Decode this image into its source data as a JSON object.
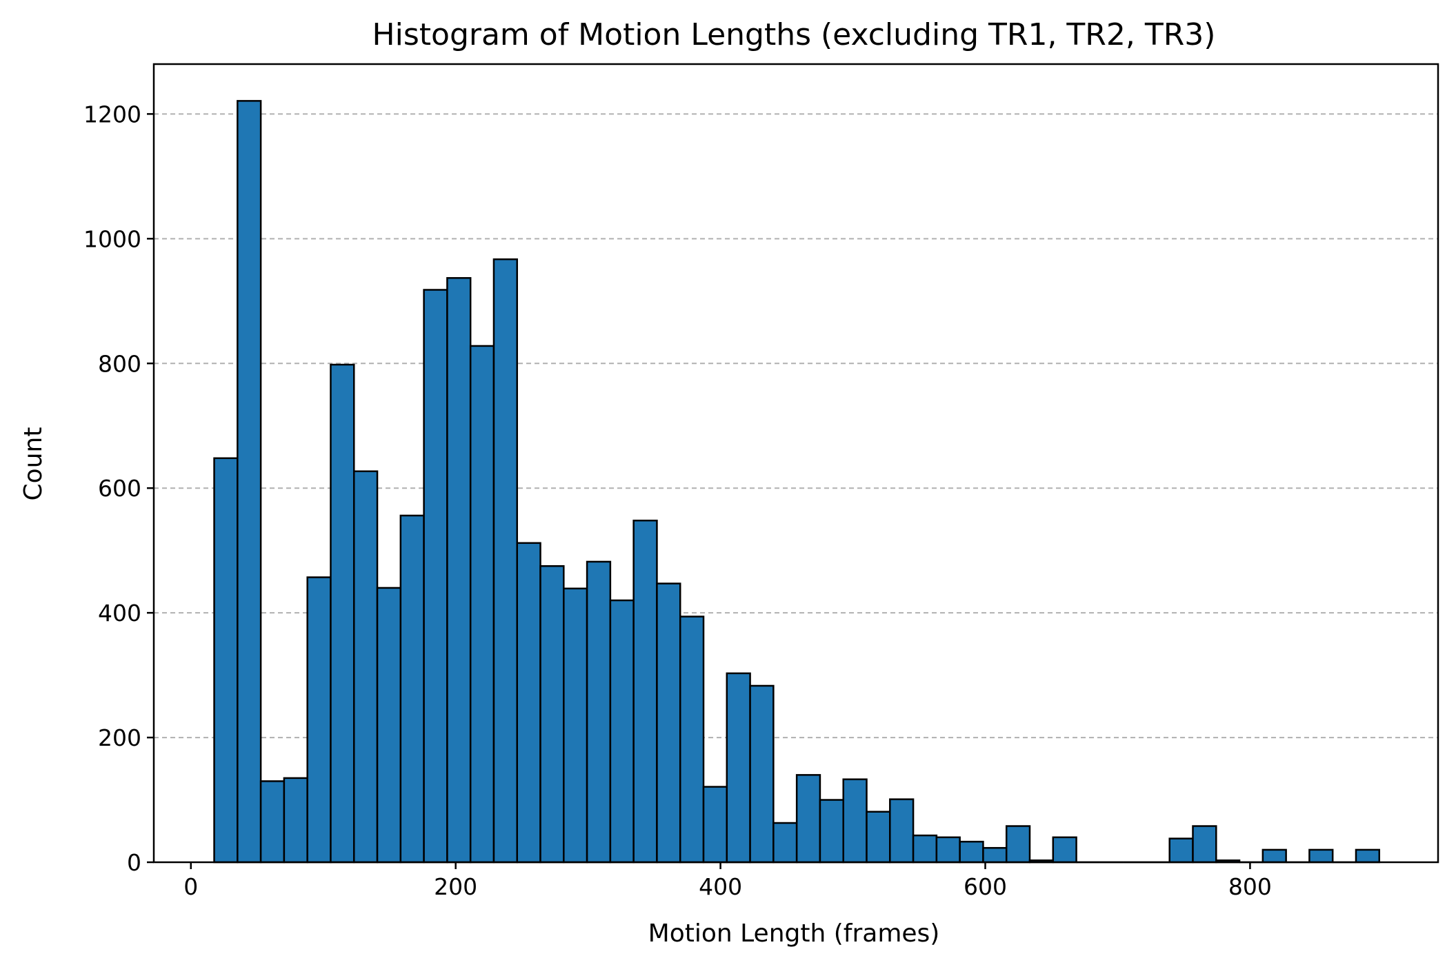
{
  "chart_data": {
    "type": "bar",
    "title": "Histogram of Motion Lengths (excluding TR1, TR2, TR3)",
    "xlabel": "Motion Length (frames)",
    "ylabel": "Count",
    "xlim": [
      -28,
      942
    ],
    "ylim": [
      0,
      1280
    ],
    "xticks": [
      0,
      200,
      400,
      600,
      800
    ],
    "yticks": [
      0,
      200,
      400,
      600,
      800,
      1000,
      1200
    ],
    "grid": "y",
    "bin_start": 17.6,
    "bin_width": 17.6,
    "values": [
      648,
      1221,
      130,
      135,
      457,
      798,
      627,
      440,
      556,
      918,
      937,
      828,
      967,
      512,
      475,
      439,
      482,
      420,
      548,
      447,
      394,
      121,
      303,
      283,
      63,
      140,
      100,
      133,
      81,
      101,
      43,
      40,
      33,
      23,
      58,
      3,
      40,
      0,
      0,
      0,
      0,
      38,
      58,
      3,
      0,
      20,
      0,
      20,
      0,
      20
    ],
    "colors": {
      "bar": "#1f77b4",
      "edge": "#000000",
      "grid": "#b0b0b0"
    }
  }
}
